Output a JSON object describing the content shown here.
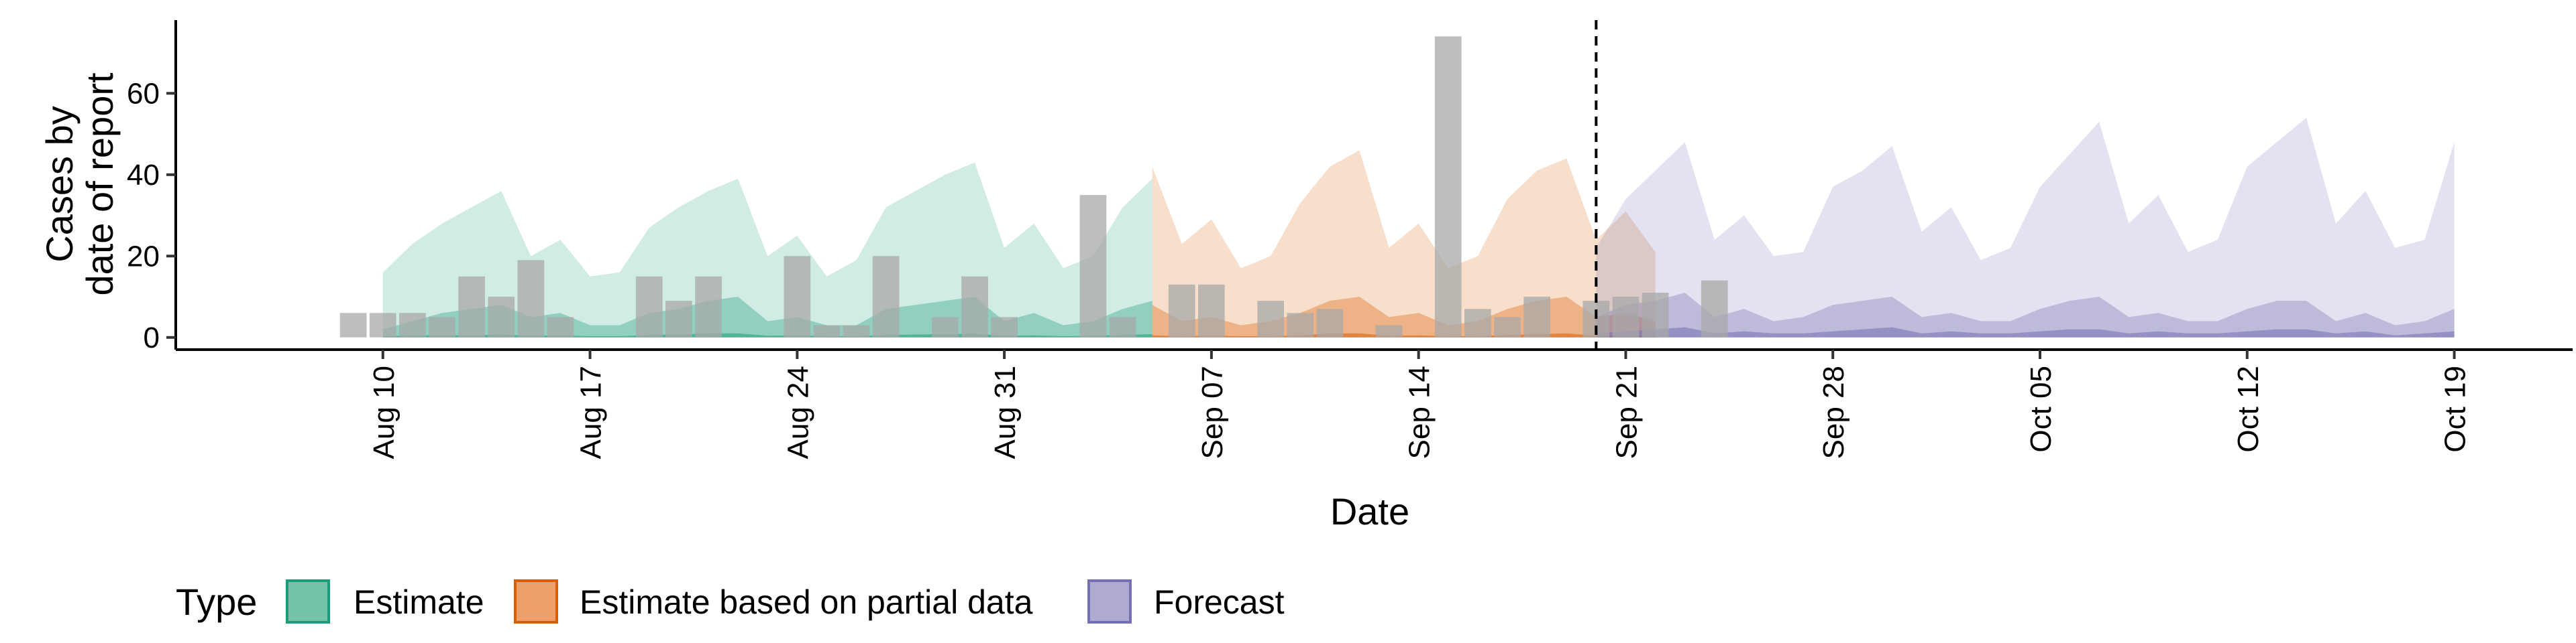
{
  "chart_data": {
    "type": "area",
    "xlabel": "Date",
    "ylabel_lines": [
      "Cases by",
      "date of report"
    ],
    "x_domain": [
      "2020-08-03",
      "2020-10-23"
    ],
    "ylim": [
      -3,
      78
    ],
    "y_ticks": [
      0,
      20,
      40,
      60
    ],
    "x_ticks": [
      {
        "date": "2020-08-10",
        "label": "Aug 10"
      },
      {
        "date": "2020-08-17",
        "label": "Aug 17"
      },
      {
        "date": "2020-08-24",
        "label": "Aug 24"
      },
      {
        "date": "2020-08-31",
        "label": "Aug 31"
      },
      {
        "date": "2020-09-07",
        "label": "Sep 07"
      },
      {
        "date": "2020-09-14",
        "label": "Sep 14"
      },
      {
        "date": "2020-09-21",
        "label": "Sep 21"
      },
      {
        "date": "2020-09-28",
        "label": "Sep 28"
      },
      {
        "date": "2020-10-05",
        "label": "Oct 05"
      },
      {
        "date": "2020-10-12",
        "label": "Oct 12"
      },
      {
        "date": "2020-10-19",
        "label": "Oct 19"
      }
    ],
    "forecast_start": "2020-09-20",
    "legend": {
      "title": "Type",
      "position": "bottom",
      "items": [
        {
          "label": "Estimate",
          "fill": "#74c4a8",
          "stroke": "#1b9e77"
        },
        {
          "label": "Estimate based on partial data",
          "fill": "#eda06a",
          "stroke": "#d95f02"
        },
        {
          "label": "Forecast",
          "fill": "#aeaad2",
          "stroke": "#7570b3"
        }
      ]
    },
    "series": [
      {
        "name": "Estimate",
        "color": "#1b9e77",
        "start": "2020-08-10",
        "upper": [
          16,
          23,
          28,
          32,
          36,
          20,
          24,
          15,
          16,
          27,
          32,
          36,
          39,
          20,
          25,
          15,
          19,
          32,
          36,
          40,
          43,
          22,
          28,
          17,
          20,
          32,
          39
        ],
        "inner_upper": [
          2,
          4,
          6,
          7,
          8,
          5,
          6,
          3,
          3,
          6,
          7,
          9,
          10,
          4,
          5,
          3,
          3,
          7,
          8,
          9,
          10,
          4,
          6,
          3,
          4,
          7,
          9
        ],
        "inner_lower": [
          0.3,
          0.5,
          0.5,
          0.5,
          0.7,
          0.4,
          0.5,
          0.3,
          0.3,
          0.6,
          0.7,
          1,
          1,
          0.4,
          0.5,
          0.3,
          0.3,
          0.6,
          0.7,
          0.8,
          0.9,
          0.4,
          0.5,
          0.3,
          0.4,
          0.6,
          0.8
        ],
        "lower": [
          0,
          0,
          0,
          0,
          0,
          0,
          0,
          0,
          0,
          0,
          0,
          0,
          0,
          0,
          0,
          0,
          0,
          0,
          0,
          0,
          0,
          0,
          0,
          0,
          0,
          0,
          0
        ]
      },
      {
        "name": "Estimate based on partial data",
        "color": "#d95f02",
        "start": "2020-09-05",
        "upper": [
          42,
          23,
          29,
          17,
          20,
          33,
          42,
          46,
          22,
          28,
          17,
          20,
          34,
          41,
          44,
          24,
          31,
          21
        ],
        "inner_upper": [
          8,
          4,
          5,
          3,
          4,
          6,
          9,
          10,
          5,
          6,
          3,
          4,
          7,
          9,
          10,
          5,
          6,
          4
        ],
        "inner_lower": [
          0.5,
          0.3,
          0.4,
          0.3,
          0.3,
          0.5,
          1,
          1,
          0.4,
          0.5,
          0.3,
          0.3,
          0.6,
          0.8,
          1,
          0.4,
          0.5,
          0.3
        ],
        "lower": [
          0,
          0,
          0,
          0,
          0,
          0,
          0,
          0,
          0,
          0,
          0,
          0,
          0,
          0,
          0,
          0,
          0,
          0
        ]
      },
      {
        "name": "Forecast",
        "color": "#7570b3",
        "start": "2020-09-20",
        "upper": [
          22,
          34,
          41,
          48,
          24,
          30,
          20,
          21,
          37,
          41,
          47,
          26,
          32,
          19,
          22,
          37,
          45,
          53,
          28,
          35,
          21,
          24,
          42,
          48,
          54,
          28,
          36,
          22,
          24,
          48
        ],
        "inner_upper": [
          5,
          8,
          9,
          11,
          5,
          7,
          4,
          5,
          8,
          9,
          10,
          5,
          6,
          4,
          4,
          7,
          9,
          10,
          5,
          6,
          4,
          4,
          7,
          9,
          9,
          4,
          6,
          3,
          4,
          7
        ],
        "inner_lower": [
          1,
          1.5,
          2,
          2.5,
          1,
          1.5,
          1,
          1,
          1.5,
          2,
          2.5,
          1,
          1.5,
          1,
          1,
          1.5,
          2,
          2,
          1,
          1.5,
          1,
          1,
          1.5,
          2,
          2,
          1,
          1.5,
          0.5,
          1,
          1.5
        ],
        "lower": [
          0,
          0,
          0,
          0,
          0,
          0,
          0,
          0,
          0,
          0,
          0,
          0,
          0,
          0,
          0,
          0,
          0,
          0,
          0,
          0,
          0,
          0,
          0,
          0,
          0,
          0,
          0,
          0,
          0,
          0
        ]
      }
    ],
    "reported_cases": {
      "name": "Cases by date of report",
      "color": "#a8a8a8",
      "start": "2020-08-09",
      "values": [
        6,
        6,
        6,
        5,
        15,
        10,
        19,
        5,
        0,
        0,
        15,
        9,
        15,
        0,
        0,
        20,
        3,
        3,
        20,
        0,
        5,
        15,
        5,
        0,
        0,
        35,
        5,
        0,
        13,
        13,
        0,
        9,
        6,
        7,
        0,
        3,
        0,
        74,
        7,
        5,
        10,
        0,
        9,
        10,
        11,
        0,
        14
      ]
    }
  }
}
